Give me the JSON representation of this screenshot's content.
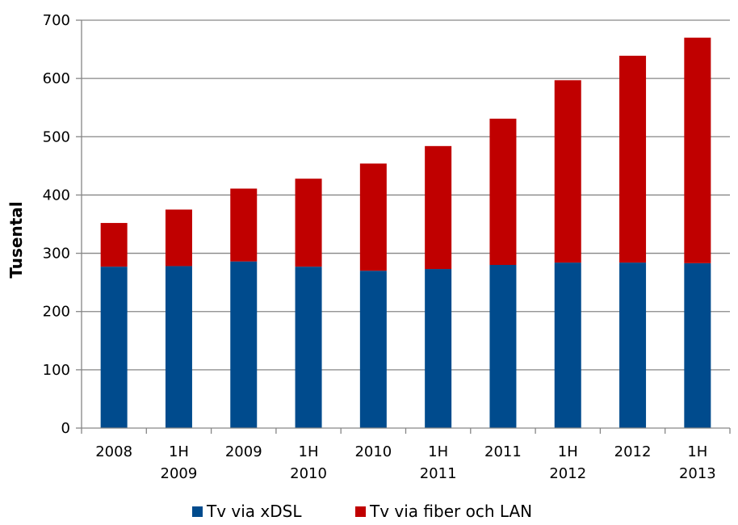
{
  "chart_data": {
    "type": "bar",
    "stacked": true,
    "title": "",
    "xlabel": "",
    "ylabel": "Tusental",
    "ylim": [
      0,
      700
    ],
    "yticks": [
      0,
      100,
      200,
      300,
      400,
      500,
      600,
      700
    ],
    "grid": true,
    "legend_position": "bottom",
    "categories": [
      [
        "2008"
      ],
      [
        "1H",
        "2009"
      ],
      [
        "2009"
      ],
      [
        "1H",
        "2010"
      ],
      [
        "2010"
      ],
      [
        "1H",
        "2011"
      ],
      [
        "2011"
      ],
      [
        "1H",
        "2012"
      ],
      [
        "2012"
      ],
      [
        "1H",
        "2013"
      ]
    ],
    "series": [
      {
        "name": "Tv via xDSL",
        "color": "#004B8D",
        "values": [
          277,
          278,
          286,
          277,
          270,
          273,
          280,
          284,
          284,
          283
        ]
      },
      {
        "name": "Tv via fiber och LAN",
        "color": "#C00000",
        "values": [
          75,
          97,
          125,
          151,
          184,
          211,
          251,
          313,
          355,
          387
        ]
      }
    ]
  }
}
